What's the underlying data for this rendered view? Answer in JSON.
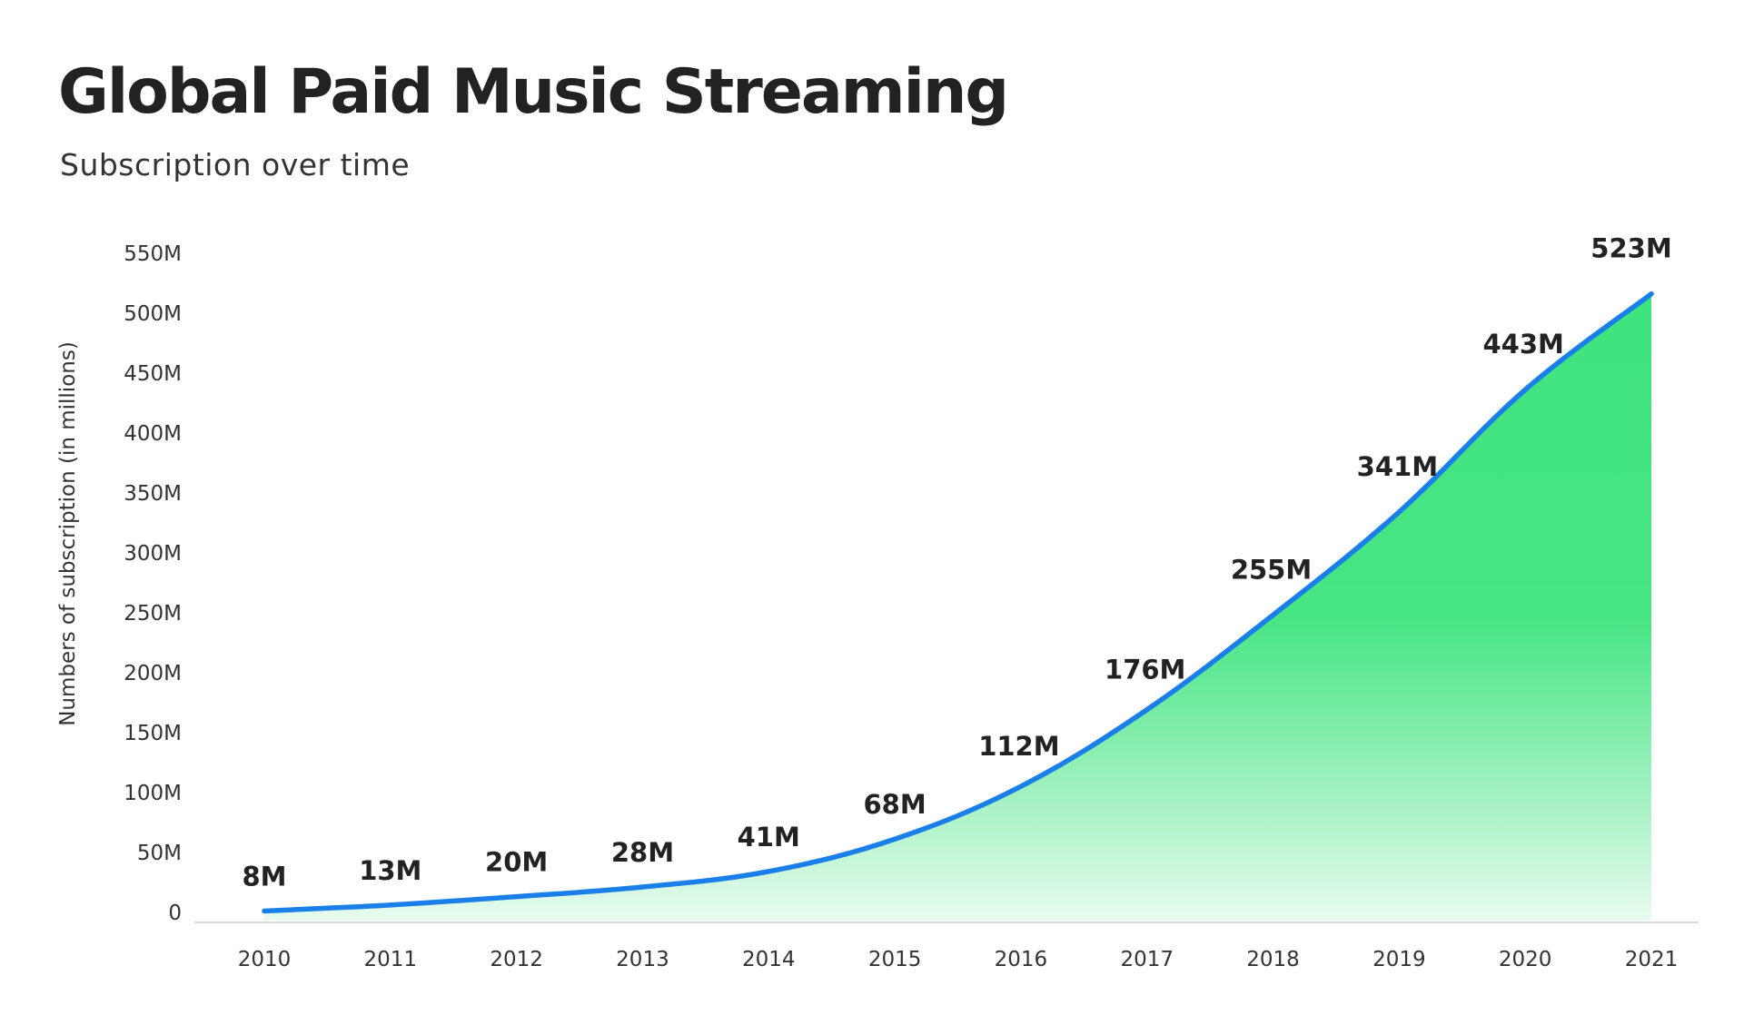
{
  "header": {
    "title": "Global Paid Music Streaming",
    "subtitle": "Subscription over time"
  },
  "colors": {
    "line": "#1a7fe8",
    "area_top": "#3ee47e",
    "area_bottom": "#e8fbef",
    "grid": "#d8d8d8",
    "text": "#222222"
  },
  "chart_data": {
    "type": "area",
    "title": "Global Paid Music Streaming",
    "subtitle": "Subscription over time",
    "xlabel": "",
    "ylabel": "Numbers of subscription (in millions)",
    "x": [
      "2010",
      "2011",
      "2012",
      "2013",
      "2014",
      "2015",
      "2016",
      "2017",
      "2018",
      "2019",
      "2020",
      "2021"
    ],
    "series": [
      {
        "values": [
          8,
          13,
          20,
          28,
          41,
          68,
          112,
          176,
          255,
          341,
          443,
          523
        ],
        "data_labels": [
          "8M",
          "13M",
          "20M",
          "28M",
          "41M",
          "68M",
          "112M",
          "176M",
          "255M",
          "341M",
          "443M",
          "523M"
        ]
      }
    ],
    "ylim": [
      0,
      550
    ],
    "yticks": [
      0,
      50,
      100,
      150,
      200,
      250,
      300,
      350,
      400,
      450,
      500,
      550
    ],
    "ytick_labels": [
      "0",
      "50M",
      "100M",
      "150M",
      "200M",
      "250M",
      "300M",
      "350M",
      "400M",
      "450M",
      "500M",
      "550M"
    ],
    "grid": true,
    "legend": false
  }
}
